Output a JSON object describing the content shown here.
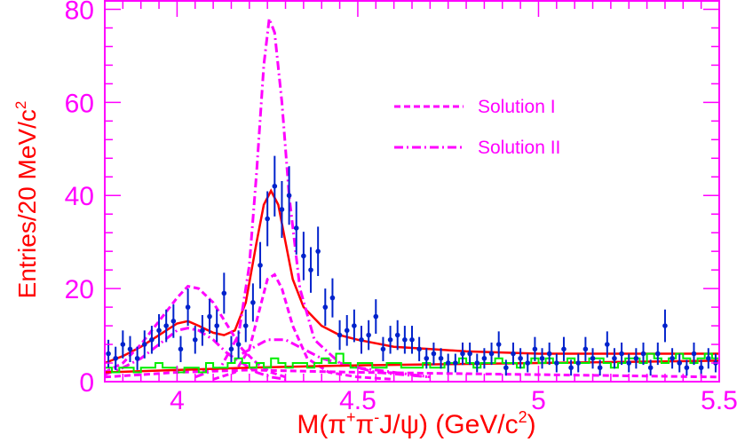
{
  "chart_data": {
    "type": "line",
    "xlabel_parts": {
      "main": "M(π",
      "sup1": "+",
      "mid": "π",
      "sup2": "-",
      "tail": "J/ψ) (GeV/c",
      "sup3": "2",
      "end": ")"
    },
    "ylabel_parts": {
      "main": "Entries/20 MeV/c",
      "sup": "2"
    },
    "xlim": [
      3.8,
      5.5
    ],
    "ylim": [
      0,
      82
    ],
    "x_ticks": [
      {
        "value": 4.0,
        "label": "4"
      },
      {
        "value": 4.5,
        "label": "4.5"
      },
      {
        "value": 5.0,
        "label": "5"
      },
      {
        "value": 5.5,
        "label": "5.5"
      }
    ],
    "y_ticks": [
      {
        "value": 0,
        "label": "0"
      },
      {
        "value": 20,
        "label": "20"
      },
      {
        "value": 40,
        "label": "40"
      },
      {
        "value": 60,
        "label": "60"
      },
      {
        "value": 80,
        "label": "80"
      }
    ],
    "legend": [
      {
        "label": "Solution I",
        "style": "dashed",
        "color": "#ff00ff"
      },
      {
        "label": "Solution II",
        "style": "dashdot",
        "color": "#ff00ff"
      }
    ],
    "legend_position": "top-right",
    "colors": {
      "data": "#0022cc",
      "fit": "#ff0000",
      "solutions": "#ff00ff",
      "sideband": "#00ee00",
      "axes": "#ff00ff"
    },
    "data_points": [
      {
        "x": 3.81,
        "y": 6,
        "err": 3.0
      },
      {
        "x": 3.83,
        "y": 5,
        "err": 2.5
      },
      {
        "x": 3.85,
        "y": 8,
        "err": 3.0
      },
      {
        "x": 3.87,
        "y": 7,
        "err": 2.8
      },
      {
        "x": 3.89,
        "y": 5,
        "err": 2.5
      },
      {
        "x": 3.91,
        "y": 8,
        "err": 3.0
      },
      {
        "x": 3.93,
        "y": 9,
        "err": 3.0
      },
      {
        "x": 3.95,
        "y": 11,
        "err": 3.5
      },
      {
        "x": 3.97,
        "y": 12,
        "err": 3.5
      },
      {
        "x": 3.99,
        "y": 13,
        "err": 3.6
      },
      {
        "x": 4.01,
        "y": 7,
        "err": 2.8
      },
      {
        "x": 4.03,
        "y": 16,
        "err": 4.0
      },
      {
        "x": 4.05,
        "y": 9,
        "err": 3.0
      },
      {
        "x": 4.07,
        "y": 11,
        "err": 3.3
      },
      {
        "x": 4.09,
        "y": 14,
        "err": 3.7
      },
      {
        "x": 4.11,
        "y": 12,
        "err": 3.5
      },
      {
        "x": 4.13,
        "y": 19,
        "err": 4.4
      },
      {
        "x": 4.15,
        "y": 7,
        "err": 2.8
      },
      {
        "x": 4.17,
        "y": 8,
        "err": 3.0
      },
      {
        "x": 4.19,
        "y": 12,
        "err": 3.5
      },
      {
        "x": 4.21,
        "y": 17,
        "err": 4.1
      },
      {
        "x": 4.23,
        "y": 25,
        "err": 5.0
      },
      {
        "x": 4.25,
        "y": 35,
        "err": 5.9
      },
      {
        "x": 4.27,
        "y": 42,
        "err": 6.5
      },
      {
        "x": 4.29,
        "y": 37,
        "err": 6.1
      },
      {
        "x": 4.31,
        "y": 40,
        "err": 6.3
      },
      {
        "x": 4.33,
        "y": 33,
        "err": 5.7
      },
      {
        "x": 4.35,
        "y": 27,
        "err": 5.2
      },
      {
        "x": 4.37,
        "y": 24,
        "err": 4.9
      },
      {
        "x": 4.39,
        "y": 28,
        "err": 5.3
      },
      {
        "x": 4.41,
        "y": 16,
        "err": 4.0
      },
      {
        "x": 4.43,
        "y": 18,
        "err": 4.2
      },
      {
        "x": 4.45,
        "y": 10,
        "err": 3.2
      },
      {
        "x": 4.47,
        "y": 11,
        "err": 3.3
      },
      {
        "x": 4.49,
        "y": 12,
        "err": 3.5
      },
      {
        "x": 4.51,
        "y": 9,
        "err": 3.0
      },
      {
        "x": 4.53,
        "y": 10,
        "err": 3.2
      },
      {
        "x": 4.55,
        "y": 14,
        "err": 3.7
      },
      {
        "x": 4.57,
        "y": 7,
        "err": 2.6
      },
      {
        "x": 4.59,
        "y": 9,
        "err": 3.0
      },
      {
        "x": 4.61,
        "y": 10,
        "err": 3.2
      },
      {
        "x": 4.63,
        "y": 9,
        "err": 3.0
      },
      {
        "x": 4.65,
        "y": 9,
        "err": 3.0
      },
      {
        "x": 4.67,
        "y": 7,
        "err": 2.6
      },
      {
        "x": 4.69,
        "y": 5,
        "err": 2.2
      },
      {
        "x": 4.71,
        "y": 6,
        "err": 2.4
      },
      {
        "x": 4.73,
        "y": 5,
        "err": 2.2
      },
      {
        "x": 4.75,
        "y": 4,
        "err": 2.0
      },
      {
        "x": 4.77,
        "y": 4,
        "err": 2.0
      },
      {
        "x": 4.79,
        "y": 6,
        "err": 2.4
      },
      {
        "x": 4.81,
        "y": 6,
        "err": 2.4
      },
      {
        "x": 4.83,
        "y": 4,
        "err": 2.0
      },
      {
        "x": 4.85,
        "y": 5,
        "err": 2.2
      },
      {
        "x": 4.87,
        "y": 6,
        "err": 2.4
      },
      {
        "x": 4.89,
        "y": 8,
        "err": 2.8
      },
      {
        "x": 4.91,
        "y": 3,
        "err": 1.7
      },
      {
        "x": 4.93,
        "y": 6,
        "err": 2.4
      },
      {
        "x": 4.95,
        "y": 5,
        "err": 2.2
      },
      {
        "x": 4.97,
        "y": 4,
        "err": 2.0
      },
      {
        "x": 4.99,
        "y": 7,
        "err": 2.6
      },
      {
        "x": 5.01,
        "y": 5,
        "err": 2.2
      },
      {
        "x": 5.03,
        "y": 6,
        "err": 2.4
      },
      {
        "x": 5.05,
        "y": 4,
        "err": 2.0
      },
      {
        "x": 5.07,
        "y": 7,
        "err": 2.6
      },
      {
        "x": 5.09,
        "y": 3,
        "err": 1.7
      },
      {
        "x": 5.11,
        "y": 4,
        "err": 2.0
      },
      {
        "x": 5.13,
        "y": 7,
        "err": 2.6
      },
      {
        "x": 5.15,
        "y": 5,
        "err": 2.2
      },
      {
        "x": 5.17,
        "y": 3,
        "err": 1.7
      },
      {
        "x": 5.19,
        "y": 8,
        "err": 2.8
      },
      {
        "x": 5.21,
        "y": 5,
        "err": 2.2
      },
      {
        "x": 5.23,
        "y": 6,
        "err": 2.4
      },
      {
        "x": 5.25,
        "y": 4,
        "err": 2.0
      },
      {
        "x": 5.27,
        "y": 5,
        "err": 2.2
      },
      {
        "x": 5.29,
        "y": 6,
        "err": 2.4
      },
      {
        "x": 5.31,
        "y": 3,
        "err": 1.7
      },
      {
        "x": 5.33,
        "y": 6,
        "err": 2.4
      },
      {
        "x": 5.35,
        "y": 12,
        "err": 3.5
      },
      {
        "x": 5.37,
        "y": 5,
        "err": 2.2
      },
      {
        "x": 5.39,
        "y": 4,
        "err": 2.0
      },
      {
        "x": 5.41,
        "y": 3,
        "err": 1.7
      },
      {
        "x": 5.43,
        "y": 6,
        "err": 2.4
      },
      {
        "x": 5.45,
        "y": 3,
        "err": 1.7
      },
      {
        "x": 5.47,
        "y": 5,
        "err": 2.2
      },
      {
        "x": 5.49,
        "y": 4,
        "err": 2.0
      }
    ],
    "sideband_histogram": {
      "x0": 3.8,
      "bin_width": 0.02,
      "values": [
        3,
        2,
        3,
        3,
        2,
        3,
        3,
        4,
        3,
        3,
        2,
        3,
        3,
        2,
        4,
        3,
        3,
        4,
        5,
        4,
        3,
        4,
        3,
        5,
        4,
        3,
        4,
        4,
        3,
        4,
        5,
        4,
        6,
        4,
        3,
        4,
        4,
        3,
        3,
        4,
        4,
        3,
        3,
        3,
        4,
        3,
        3,
        4,
        4,
        5,
        4,
        3,
        4,
        4,
        5,
        4,
        4,
        3,
        4,
        5,
        4,
        5,
        4,
        4,
        5,
        4,
        4,
        5,
        5,
        4,
        3,
        4,
        5,
        5,
        4,
        6,
        5,
        4,
        5,
        6,
        5,
        4,
        5,
        6,
        5
      ]
    },
    "curves": {
      "total_fit": {
        "style": "solid",
        "color": "#ff0000",
        "x": [
          3.8,
          3.85,
          3.9,
          3.95,
          4.0,
          4.03,
          4.06,
          4.1,
          4.13,
          4.16,
          4.19,
          4.22,
          4.24,
          4.26,
          4.28,
          4.3,
          4.32,
          4.35,
          4.4,
          4.45,
          4.5,
          4.6,
          4.7,
          4.8,
          5.0,
          5.2,
          5.5
        ],
        "y": [
          4,
          5.5,
          7.5,
          10,
          12.5,
          13,
          12,
          10.5,
          10,
          11,
          17,
          30,
          38,
          41,
          38,
          30,
          22,
          16,
          12,
          10,
          9,
          7.5,
          7,
          6.5,
          6,
          6,
          6
        ]
      },
      "solution_I_peak1": {
        "style": "dashed",
        "color": "#ff00ff",
        "x": [
          3.8,
          3.85,
          3.9,
          3.95,
          4.0,
          4.03,
          4.06,
          4.1,
          4.14,
          4.18,
          4.22,
          4.26,
          4.3
        ],
        "y": [
          2,
          4,
          8,
          13,
          18,
          20.5,
          20,
          17,
          12,
          7,
          4,
          2,
          1
        ]
      },
      "solution_I_peak2": {
        "style": "dashed",
        "color": "#ff00ff",
        "x": [
          4.1,
          4.16,
          4.2,
          4.23,
          4.25,
          4.27,
          4.29,
          4.32,
          4.36,
          4.42,
          4.5,
          4.6
        ],
        "y": [
          0.5,
          2,
          7,
          16,
          22,
          23,
          20,
          12,
          5,
          2,
          1,
          0.5
        ]
      },
      "solution_I_background": {
        "style": "dashed",
        "color": "#ff00ff",
        "x": [
          3.8,
          4.0,
          4.2,
          4.5,
          5.0,
          5.5
        ],
        "y": [
          1,
          2,
          2.5,
          2,
          1.5,
          1
        ]
      },
      "solution_II_peak1": {
        "style": "dashdot",
        "color": "#ff00ff",
        "x": [
          3.8,
          3.85,
          3.9,
          3.95,
          4.0,
          4.03,
          4.06,
          4.1,
          4.14,
          4.18,
          4.22,
          4.26,
          4.3
        ],
        "y": [
          1.5,
          3,
          5,
          8,
          11,
          11.5,
          11,
          9,
          6,
          4,
          2,
          1,
          0.5
        ]
      },
      "solution_II_peak2": {
        "style": "dashdot",
        "color": "#ff00ff",
        "x": [
          4.05,
          4.12,
          4.17,
          4.2,
          4.22,
          4.24,
          4.255,
          4.27,
          4.29,
          4.31,
          4.34,
          4.38,
          4.45,
          4.55,
          4.7
        ],
        "y": [
          1,
          3,
          10,
          25,
          45,
          68,
          78,
          75,
          60,
          40,
          20,
          9,
          4,
          2,
          1
        ]
      },
      "solution_II_tail": {
        "style": "dashdot",
        "color": "#ff00ff",
        "x": [
          4.18,
          4.25,
          4.3,
          4.35,
          4.4,
          4.5,
          4.6,
          4.7
        ],
        "y": [
          6,
          9,
          9,
          7,
          5,
          3,
          2,
          1
        ]
      },
      "sideband_fit": {
        "style": "solid",
        "color": "#ff0000",
        "x": [
          3.8,
          4.0,
          4.2,
          4.5,
          5.0,
          5.5
        ],
        "y": [
          2,
          2.5,
          3,
          3.5,
          4,
          4.5
        ]
      }
    }
  }
}
